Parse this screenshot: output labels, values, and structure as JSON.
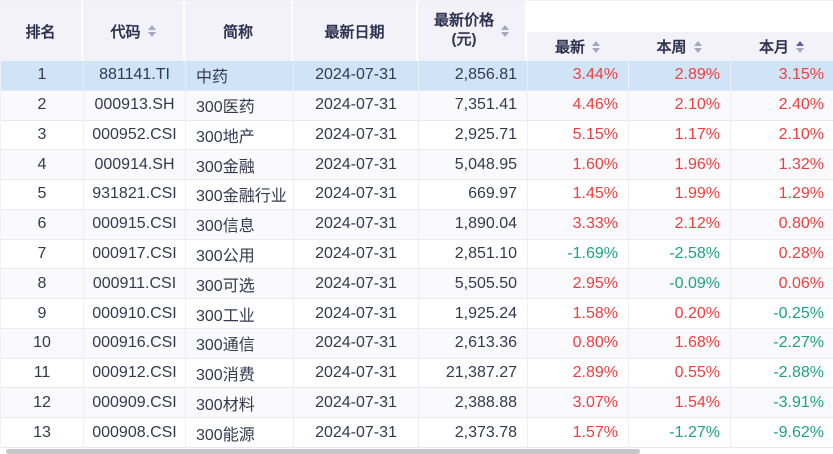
{
  "table": {
    "columns": [
      {
        "label": "排名",
        "sortable": false
      },
      {
        "label": "代码",
        "sortable": true
      },
      {
        "label": "简称",
        "sortable": false
      },
      {
        "label": "最新日期",
        "sortable": false
      },
      {
        "label": "最新价格\n(元)",
        "sortable": true
      },
      {
        "label": "最新",
        "sortable": true
      },
      {
        "label": "本周",
        "sortable": true
      },
      {
        "label": "本月",
        "sortable": true,
        "sorted": true
      }
    ],
    "rows": [
      {
        "rank": "1",
        "code": "881141.TI",
        "name": "中药",
        "date": "2024-07-31",
        "price": "2,856.81",
        "latest": "3.44%",
        "week": "2.89%",
        "month": "3.15%",
        "highlighted": true
      },
      {
        "rank": "2",
        "code": "000913.SH",
        "name": "300医药",
        "date": "2024-07-31",
        "price": "7,351.41",
        "latest": "4.46%",
        "week": "2.10%",
        "month": "2.40%"
      },
      {
        "rank": "3",
        "code": "000952.CSI",
        "name": "300地产",
        "date": "2024-07-31",
        "price": "2,925.71",
        "latest": "5.15%",
        "week": "1.17%",
        "month": "2.10%"
      },
      {
        "rank": "4",
        "code": "000914.SH",
        "name": "300金融",
        "date": "2024-07-31",
        "price": "5,048.95",
        "latest": "1.60%",
        "week": "1.96%",
        "month": "1.32%"
      },
      {
        "rank": "5",
        "code": "931821.CSI",
        "name": "300金融行业",
        "date": "2024-07-31",
        "price": "669.97",
        "latest": "1.45%",
        "week": "1.99%",
        "month": "1.29%"
      },
      {
        "rank": "6",
        "code": "000915.CSI",
        "name": "300信息",
        "date": "2024-07-31",
        "price": "1,890.04",
        "latest": "3.33%",
        "week": "2.12%",
        "month": "0.80%"
      },
      {
        "rank": "7",
        "code": "000917.CSI",
        "name": "300公用",
        "date": "2024-07-31",
        "price": "2,851.10",
        "latest": "-1.69%",
        "week": "-2.58%",
        "month": "0.28%"
      },
      {
        "rank": "8",
        "code": "000911.CSI",
        "name": "300可选",
        "date": "2024-07-31",
        "price": "5,505.50",
        "latest": "2.95%",
        "week": "-0.09%",
        "month": "0.06%"
      },
      {
        "rank": "9",
        "code": "000910.CSI",
        "name": "300工业",
        "date": "2024-07-31",
        "price": "1,925.24",
        "latest": "1.58%",
        "week": "0.20%",
        "month": "-0.25%"
      },
      {
        "rank": "10",
        "code": "000916.CSI",
        "name": "300通信",
        "date": "2024-07-31",
        "price": "2,613.36",
        "latest": "0.80%",
        "week": "1.68%",
        "month": "-2.27%"
      },
      {
        "rank": "11",
        "code": "000912.CSI",
        "name": "300消费",
        "date": "2024-07-31",
        "price": "21,387.27",
        "latest": "2.89%",
        "week": "0.55%",
        "month": "-2.88%"
      },
      {
        "rank": "12",
        "code": "000909.CSI",
        "name": "300材料",
        "date": "2024-07-31",
        "price": "2,388.88",
        "latest": "3.07%",
        "week": "1.54%",
        "month": "-3.91%"
      },
      {
        "rank": "13",
        "code": "000908.CSI",
        "name": "300能源",
        "date": "2024-07-31",
        "price": "2,373.78",
        "latest": "1.57%",
        "week": "-1.27%",
        "month": "-9.62%"
      }
    ]
  },
  "colors": {
    "positive": "#f03e3e",
    "negative": "#1da287",
    "highlight_row": "#d0e4f8",
    "header_bg": "#f2f2f8",
    "header_text": "#2e3150",
    "body_text": "#363850"
  }
}
